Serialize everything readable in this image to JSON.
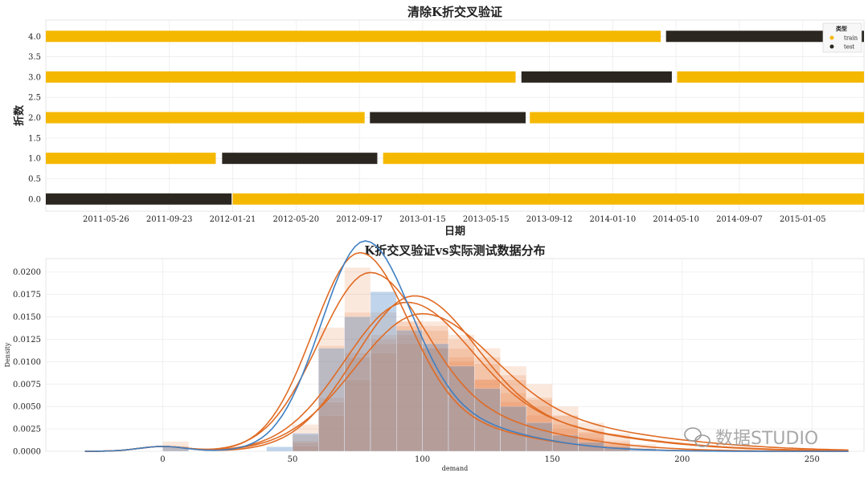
{
  "chart_data": [
    {
      "type": "gantt",
      "title": "清除K折交叉验证",
      "xlabel": "日期",
      "ylabel": "折数",
      "ylim": [
        -0.3,
        4.4
      ],
      "y_ticks": [
        "0.0",
        "0.5",
        "1.0",
        "1.5",
        "2.0",
        "2.5",
        "3.0",
        "3.5",
        "4.0"
      ],
      "x_tick_labels": [
        "2011-05-26",
        "2011-09-23",
        "2012-01-21",
        "2012-05-20",
        "2012-09-17",
        "2013-01-15",
        "2013-05-15",
        "2013-09-12",
        "2014-01-10",
        "2014-05-10",
        "2014-09-07",
        "2015-01-05"
      ],
      "xlim": [
        "2011-02-01",
        "2015-05-01"
      ],
      "legend": {
        "title": "类型",
        "placement": "top-right",
        "entries": [
          {
            "label": "train",
            "color": "#f5b800"
          },
          {
            "label": "test",
            "color": "#2b2720"
          }
        ]
      },
      "folds": [
        {
          "fold": 0,
          "segments": [
            {
              "type": "test",
              "start": "2011-02-01",
              "end": "2012-01-19"
            },
            {
              "type": "train",
              "start": "2012-01-21",
              "end": "2015-05-01"
            }
          ]
        },
        {
          "fold": 1,
          "segments": [
            {
              "type": "train",
              "start": "2011-02-01",
              "end": "2011-12-20"
            },
            {
              "type": "test",
              "start": "2012-01-01",
              "end": "2012-10-21"
            },
            {
              "type": "train",
              "start": "2012-11-01",
              "end": "2015-05-01"
            }
          ]
        },
        {
          "fold": 2,
          "segments": [
            {
              "type": "train",
              "start": "2011-02-01",
              "end": "2012-09-27"
            },
            {
              "type": "test",
              "start": "2012-10-07",
              "end": "2013-07-29"
            },
            {
              "type": "train",
              "start": "2013-08-06",
              "end": "2015-05-01"
            }
          ]
        },
        {
          "fold": 3,
          "segments": [
            {
              "type": "train",
              "start": "2011-02-01",
              "end": "2013-07-10"
            },
            {
              "type": "test",
              "start": "2013-07-21",
              "end": "2014-05-02"
            },
            {
              "type": "train",
              "start": "2014-05-12",
              "end": "2015-05-01"
            }
          ]
        },
        {
          "fold": 4,
          "segments": [
            {
              "type": "train",
              "start": "2011-02-01",
              "end": "2014-04-11"
            },
            {
              "type": "test",
              "start": "2014-04-21",
              "end": "2015-05-01"
            }
          ]
        }
      ]
    },
    {
      "type": "histogram+kde",
      "title": "K折交叉验证vs实际测试数据分布",
      "xlabel": "demand",
      "ylabel": "Density",
      "xlim": [
        -45,
        270
      ],
      "ylim": [
        0,
        0.0215
      ],
      "x_ticks": [
        0,
        50,
        100,
        150,
        200,
        250
      ],
      "y_ticks": [
        "0.0000",
        "0.0025",
        "0.0050",
        "0.0075",
        "0.0100",
        "0.0125",
        "0.0150",
        "0.0175",
        "0.0200"
      ],
      "bin_width": 10,
      "series": [
        {
          "color": "#e8702a",
          "kde_mu": 76,
          "kde_sigma": 18,
          "kde_tail": 0.22,
          "bins": [
            [
              0,
              0.0011
            ],
            [
              50,
              0.0018
            ],
            [
              60,
              0.0138
            ],
            [
              70,
              0.0205
            ],
            [
              80,
              0.0155
            ],
            [
              90,
              0.0145
            ],
            [
              100,
              0.0115
            ],
            [
              110,
              0.0105
            ],
            [
              120,
              0.008
            ],
            [
              130,
              0.0055
            ],
            [
              140,
              0.004
            ],
            [
              150,
              0.0025
            ],
            [
              160,
              0.0015
            ],
            [
              170,
              0.0006
            ]
          ]
        },
        {
          "color": "#e8702a",
          "kde_mu": 80,
          "kde_sigma": 20,
          "kde_tail": 0.3,
          "bins": [
            [
              0,
              0.0006
            ],
            [
              50,
              0.003
            ],
            [
              60,
              0.0118
            ],
            [
              70,
              0.0155
            ],
            [
              80,
              0.0125
            ],
            [
              90,
              0.012
            ],
            [
              100,
              0.0115
            ],
            [
              110,
              0.01
            ],
            [
              120,
              0.008
            ],
            [
              130,
              0.0065
            ],
            [
              140,
              0.005
            ],
            [
              150,
              0.003
            ],
            [
              160,
              0.002
            ],
            [
              170,
              0.0008
            ]
          ]
        },
        {
          "color": "#e8702a",
          "kde_mu": 94,
          "kde_sigma": 24,
          "kde_tail": 0.28,
          "bins": [
            [
              50,
              0.0012
            ],
            [
              60,
              0.006
            ],
            [
              70,
              0.011
            ],
            [
              80,
              0.012
            ],
            [
              90,
              0.0145
            ],
            [
              100,
              0.014
            ],
            [
              110,
              0.0125
            ],
            [
              120,
              0.0105
            ],
            [
              130,
              0.0085
            ],
            [
              140,
              0.006
            ],
            [
              150,
              0.004
            ],
            [
              160,
              0.0025
            ],
            [
              170,
              0.0012
            ]
          ]
        },
        {
          "color": "#e8702a",
          "kde_mu": 100,
          "kde_sigma": 26,
          "kde_tail": 0.3,
          "bins": [
            [
              50,
              0.0006
            ],
            [
              60,
              0.004
            ],
            [
              70,
              0.008
            ],
            [
              80,
              0.011
            ],
            [
              90,
              0.013
            ],
            [
              100,
              0.0145
            ],
            [
              110,
              0.013
            ],
            [
              120,
              0.0115
            ],
            [
              130,
              0.0095
            ],
            [
              140,
              0.0075
            ],
            [
              150,
              0.005
            ],
            [
              160,
              0.0032
            ],
            [
              170,
              0.002
            ],
            [
              180,
              0.0008
            ]
          ]
        },
        {
          "color": "#e8702a",
          "kde_mu": 97,
          "kde_sigma": 23,
          "kde_tail": 0.26,
          "bins": [
            [
              50,
              0.001
            ],
            [
              60,
              0.0055
            ],
            [
              70,
              0.0105
            ],
            [
              80,
              0.013
            ],
            [
              90,
              0.014
            ],
            [
              100,
              0.0135
            ],
            [
              110,
              0.0115
            ],
            [
              120,
              0.0098
            ],
            [
              130,
              0.008
            ],
            [
              140,
              0.0058
            ],
            [
              150,
              0.004
            ],
            [
              160,
              0.0022
            ],
            [
              170,
              0.001
            ]
          ]
        },
        {
          "color": "#4a88c7",
          "kde_mu": 78,
          "kde_sigma": 17,
          "kde_tail": 0.24,
          "bins": [
            [
              0,
              0.0005
            ],
            [
              40,
              0.0005
            ],
            [
              50,
              0.002
            ],
            [
              60,
              0.0115
            ],
            [
              70,
              0.015
            ],
            [
              80,
              0.0178
            ],
            [
              90,
              0.0135
            ],
            [
              100,
              0.012
            ],
            [
              110,
              0.0095
            ],
            [
              120,
              0.007
            ],
            [
              130,
              0.005
            ],
            [
              140,
              0.0032
            ],
            [
              150,
              0.0018
            ],
            [
              160,
              0.001
            ],
            [
              170,
              0.0005
            ],
            [
              180,
              0.0003
            ]
          ]
        }
      ]
    }
  ],
  "watermark": "数据STUDIO"
}
